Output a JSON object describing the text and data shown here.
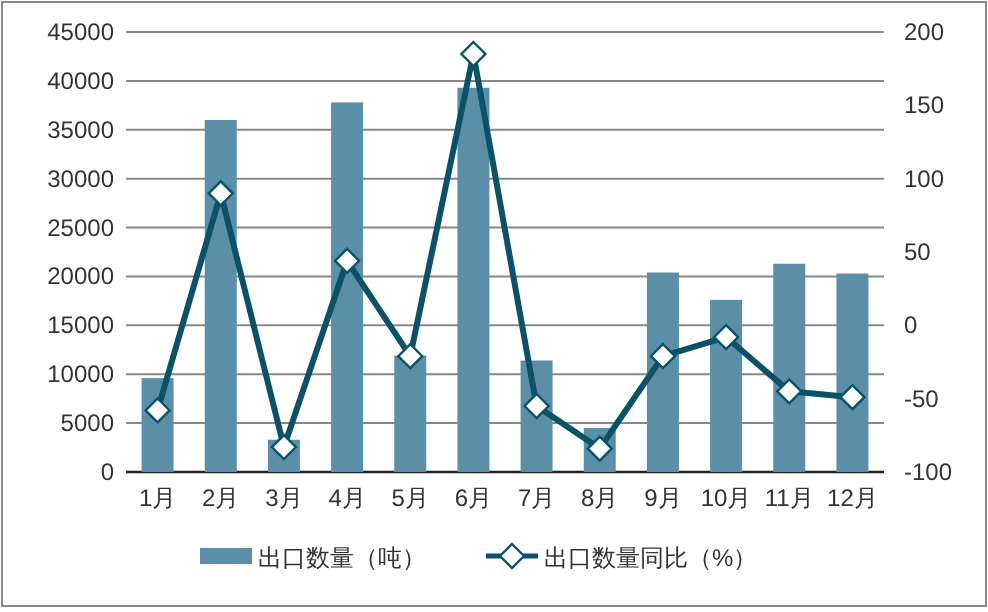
{
  "chart_data": {
    "type": "bar",
    "categories": [
      "1月",
      "2月",
      "3月",
      "4月",
      "5月",
      "6月",
      "7月",
      "8月",
      "9月",
      "10月",
      "11月",
      "12月"
    ],
    "series": [
      {
        "name": "出口数量（吨）",
        "color": "#5b8fa8",
        "values": [
          9600,
          36000,
          3300,
          37800,
          11900,
          39300,
          11400,
          4500,
          20400,
          17600,
          21300,
          20300
        ]
      },
      {
        "name": "出口数量同比（%）",
        "type": "line",
        "axis": "y2",
        "color": "#0b5269",
        "marker": "diamond",
        "values": [
          -58,
          90,
          -83,
          44,
          -21,
          185,
          -55,
          -84,
          -21,
          -8,
          -45,
          -49
        ]
      }
    ],
    "ylim": [
      0,
      45000
    ],
    "yticks": [
      0,
      5000,
      10000,
      15000,
      20000,
      25000,
      30000,
      35000,
      40000,
      45000
    ],
    "y2lim": [
      -100,
      200
    ],
    "y2ticks": [
      -100,
      -50,
      0,
      50,
      100,
      150,
      200
    ],
    "grid": "y",
    "legend": "bottom"
  }
}
